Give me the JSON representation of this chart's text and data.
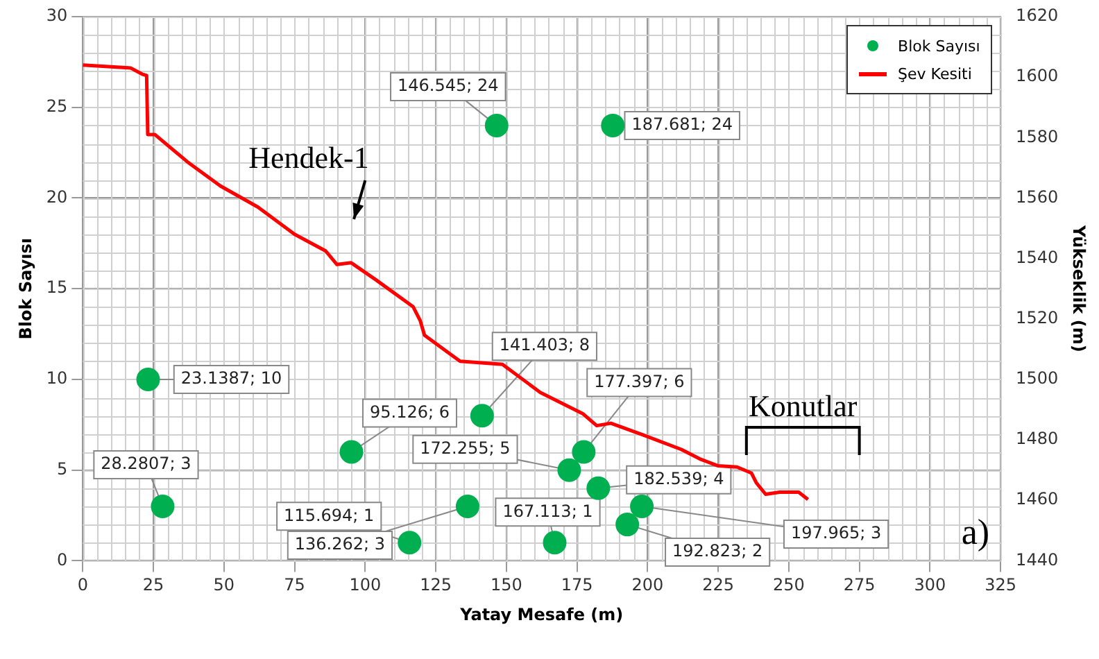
{
  "chart_data": {
    "type": "scatter",
    "xlabel": "Yatay Mesafe (m)",
    "ylabel": "Blok Sayısı",
    "y2label": "Yükseklik (m)",
    "xlim": [
      0,
      325
    ],
    "xticks": [
      0,
      25,
      50,
      75,
      100,
      125,
      150,
      175,
      200,
      225,
      250,
      275,
      300,
      325
    ],
    "ylim": [
      0,
      30
    ],
    "yticks": [
      0,
      5,
      10,
      15,
      20,
      25,
      30
    ],
    "y2lim": [
      1440,
      1620
    ],
    "y2ticks": [
      1440,
      1460,
      1480,
      1500,
      1520,
      1540,
      1560,
      1580,
      1600,
      1620
    ],
    "grid": true,
    "legend": "top right",
    "marker": "circle",
    "series": [
      {
        "name": "Blok Sayısı",
        "color": "#00b050",
        "x": [
          23.1387,
          28.2807,
          95.126,
          115.694,
          136.262,
          141.403,
          146.545,
          167.113,
          172.255,
          177.397,
          182.539,
          187.681,
          192.823,
          197.965
        ],
        "values": [
          10,
          3,
          6,
          1,
          3,
          8,
          24,
          1,
          5,
          6,
          4,
          24,
          2,
          3
        ],
        "value_labels": [
          "23.1387; 10",
          "28.2807; 3",
          "95.126; 6",
          "115.694; 1",
          "136.262; 3",
          "141.403; 8",
          "146.545; 24",
          "167.113; 1",
          "172.255; 5",
          "177.397; 6",
          "182.539; 4",
          "187.681; 24",
          "192.823; 2",
          "197.965; 3"
        ]
      },
      {
        "name": "Şev Kesiti",
        "type": "line",
        "axis": "y2",
        "color": "#ff0000",
        "marker": "none",
        "x": [
          0,
          17,
          21,
          22.6,
          23,
          25.5,
          37,
          48.7,
          62,
          75,
          86,
          90,
          95,
          103.7,
          117,
          119.5,
          121,
          133.6,
          148.6,
          162,
          177,
          182,
          187,
          198.5,
          212,
          218.5,
          225,
          231.7,
          236.8,
          238.5,
          241.8,
          246.8,
          253.5,
          256.8
        ],
        "values": [
          1604,
          1603,
          1601,
          1600.5,
          1581,
          1581,
          1572,
          1564,
          1557,
          1548,
          1542.5,
          1538,
          1538.6,
          1533,
          1524,
          1519.4,
          1514.6,
          1506,
          1505,
          1495.7,
          1488.7,
          1484.7,
          1485.5,
          1481.6,
          1476.8,
          1473.7,
          1471.4,
          1471,
          1469,
          1465.8,
          1462,
          1462.7,
          1462.7,
          1460.3
        ]
      }
    ],
    "annotations": [
      "Hendek-1",
      "Konutlar",
      "a)"
    ]
  }
}
